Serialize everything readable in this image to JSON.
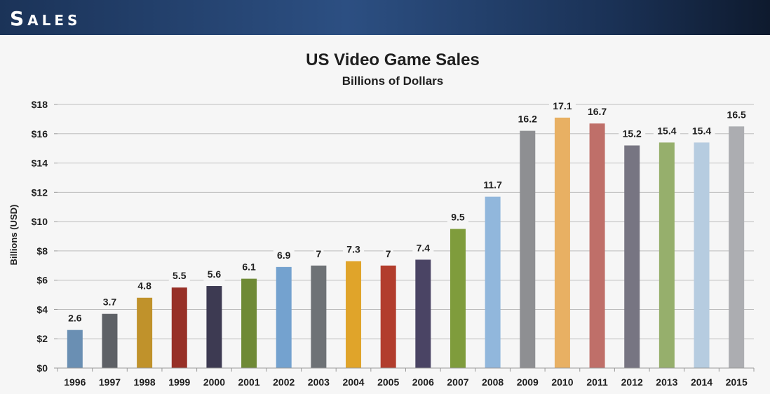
{
  "header": {
    "title": "Sales"
  },
  "chart_data": {
    "type": "bar",
    "title": "US Video Game Sales",
    "subtitle": "Billions of Dollars",
    "ylabel": "Billions (USD)",
    "xlabel": "",
    "ylim": [
      0,
      18
    ],
    "yticks": [
      0,
      2,
      4,
      6,
      8,
      10,
      12,
      14,
      16,
      18
    ],
    "ytick_labels": [
      "$0",
      "$2",
      "$4",
      "$6",
      "$8",
      "$10",
      "$12",
      "$14",
      "$16",
      "$18"
    ],
    "grid": true,
    "categories": [
      "1996",
      "1997",
      "1998",
      "1999",
      "2000",
      "2001",
      "2002",
      "2003",
      "2004",
      "2005",
      "2006",
      "2007",
      "2008",
      "2009",
      "2010",
      "2011",
      "2012",
      "2013",
      "2014",
      "2015"
    ],
    "values": [
      2.6,
      3.7,
      4.8,
      5.5,
      5.6,
      6.1,
      6.9,
      7,
      7.3,
      7,
      7.4,
      9.5,
      11.7,
      16.2,
      17.1,
      16.7,
      15.2,
      15.4,
      15.4,
      16.5
    ],
    "data_labels": [
      "2.6",
      "3.7",
      "4.8",
      "5.5",
      "5.6",
      "6.1",
      "6.9",
      "7",
      "7.3",
      "7",
      "7.4",
      "9.5",
      "11.7",
      "16.2",
      "17.1",
      "16.7",
      "15.2",
      "15.4",
      "15.4",
      "16.5"
    ],
    "colors": [
      "#6a8fb3",
      "#5e6166",
      "#c0922b",
      "#973027",
      "#3d3a52",
      "#6f8a36",
      "#74a2cf",
      "#6e7276",
      "#e0a42a",
      "#b23d2d",
      "#4a4464",
      "#7f9c3c",
      "#91b7dc",
      "#8e8f92",
      "#e8b063",
      "#bf6f69",
      "#777582",
      "#96af6c",
      "#b6cce0",
      "#acadb1"
    ]
  }
}
